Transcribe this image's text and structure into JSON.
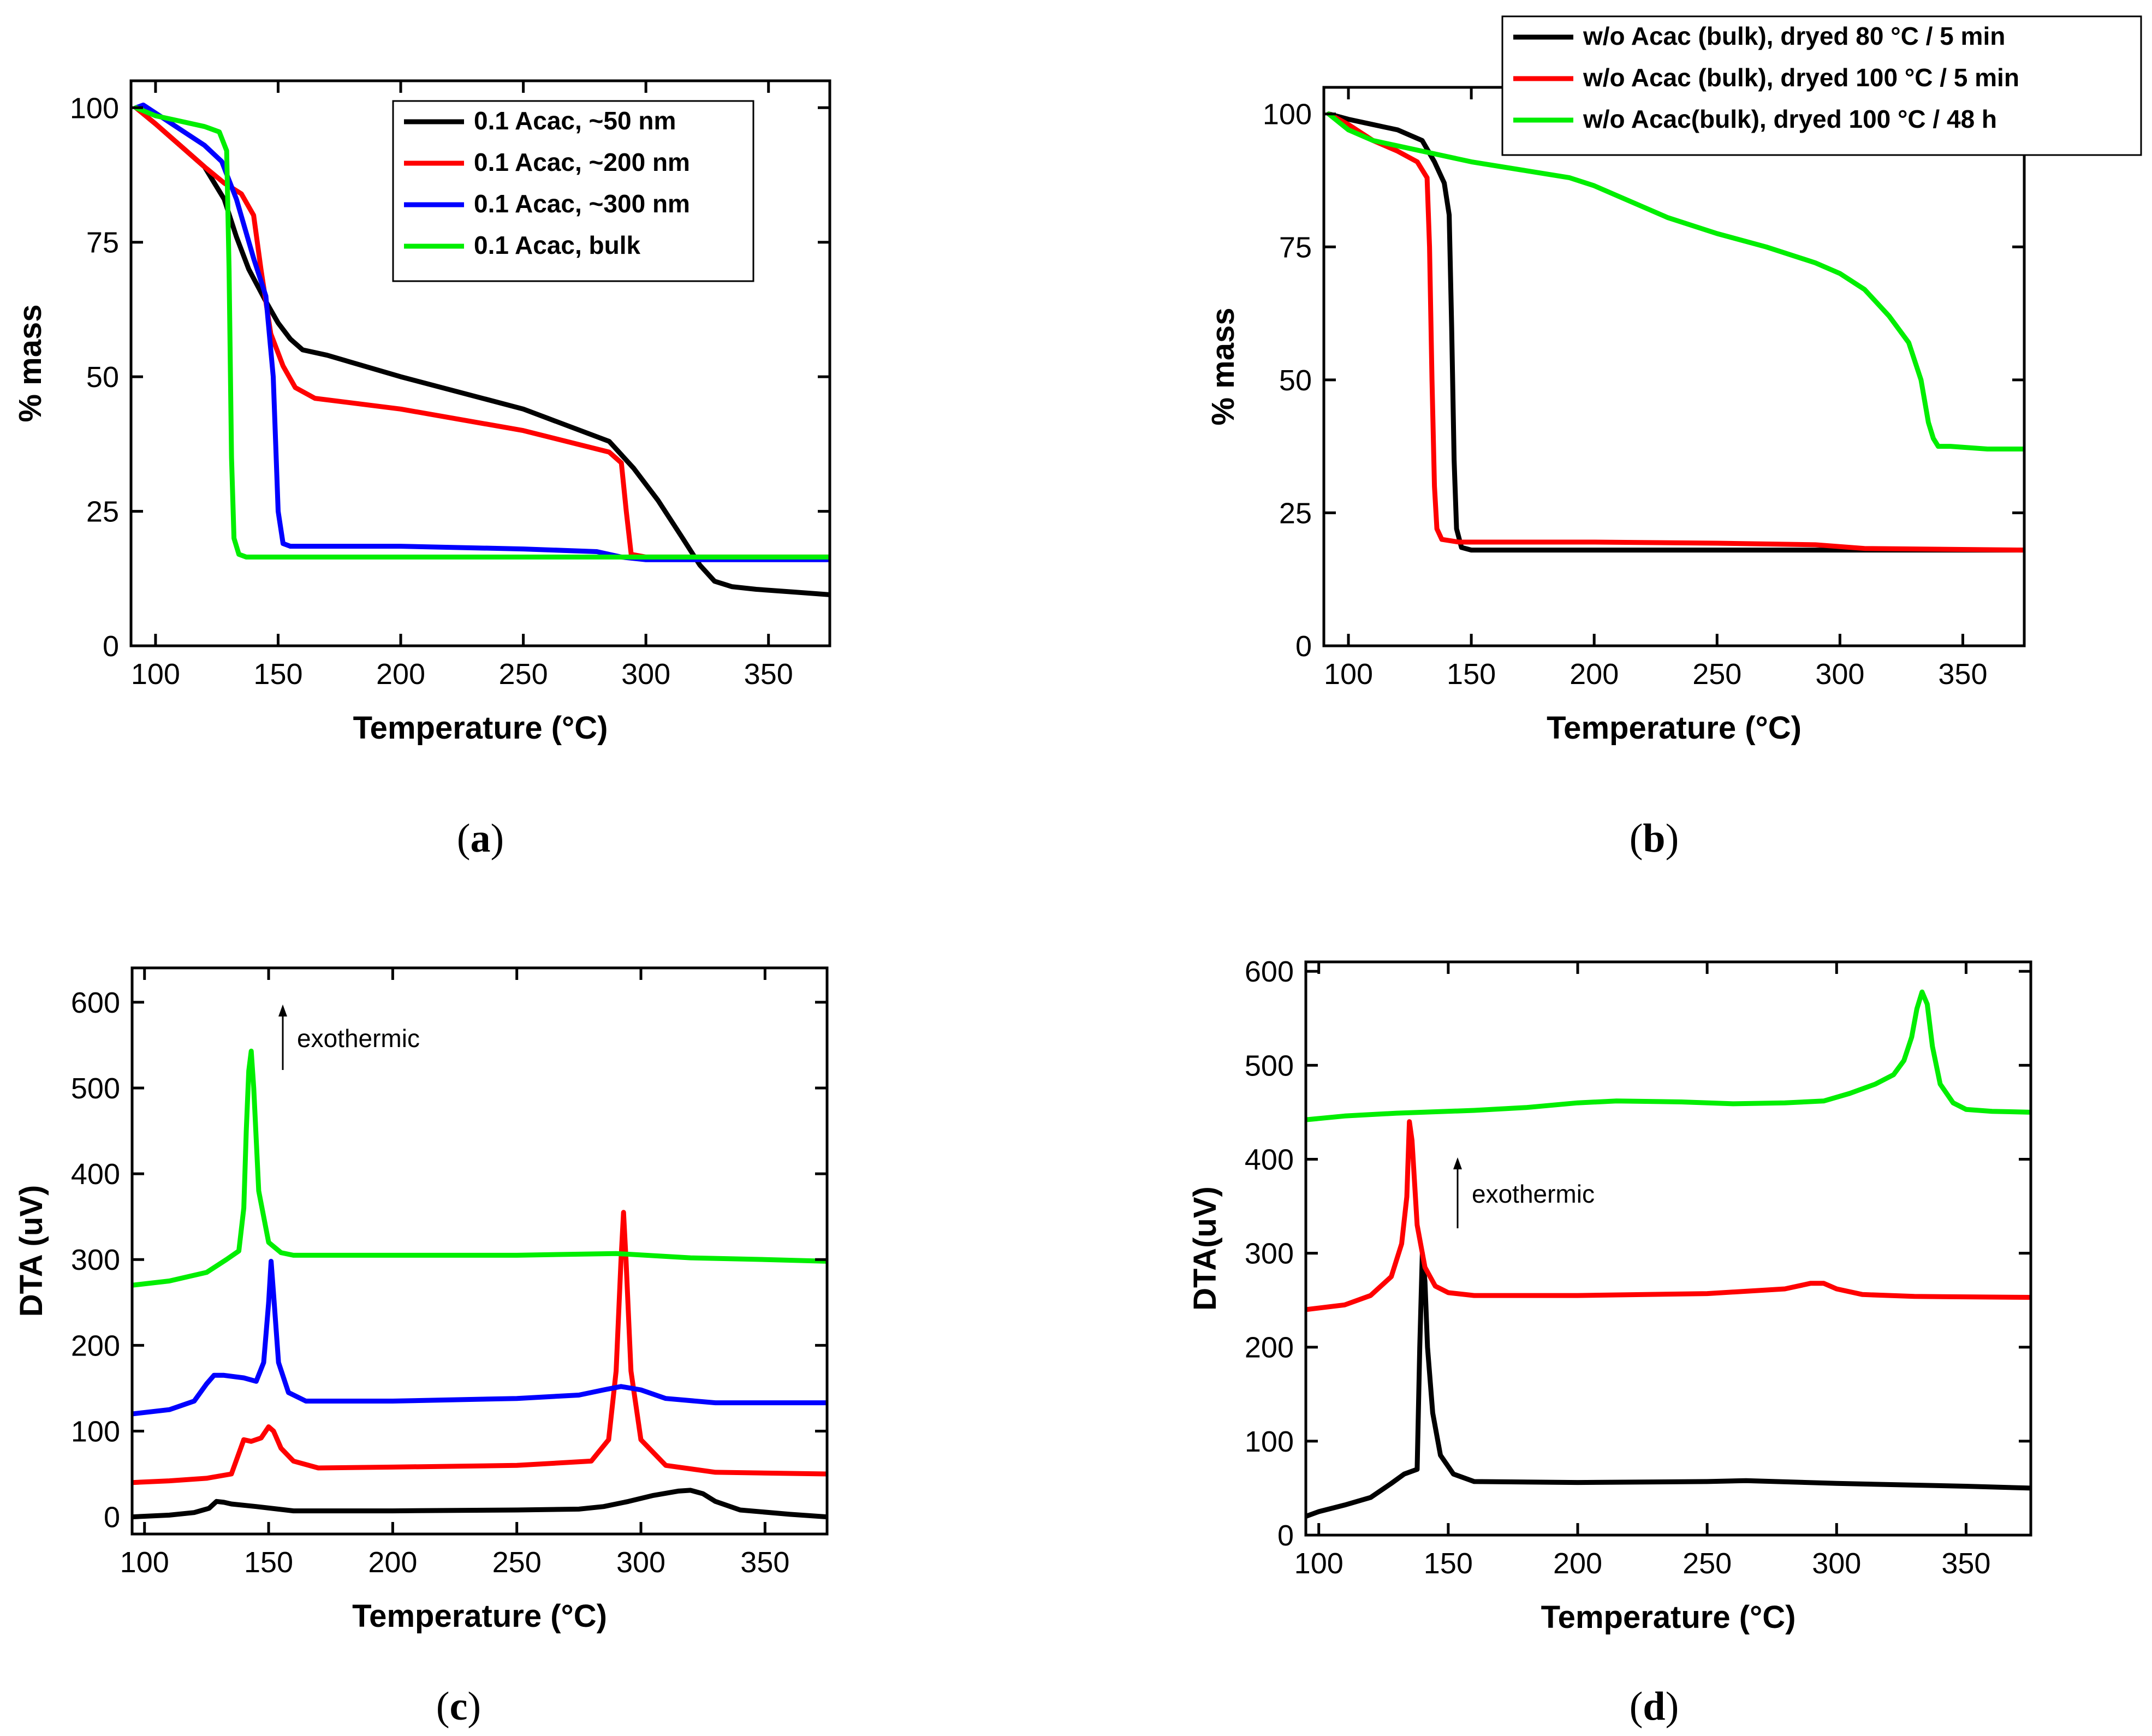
{
  "chart_data": [
    {
      "id": "a",
      "type": "line",
      "caption": "a",
      "title": "",
      "xlabel": "Temperature (°C)",
      "ylabel": "% mass",
      "xlim": [
        90,
        375
      ],
      "ylim": [
        0,
        105
      ],
      "xticks": [
        100,
        150,
        200,
        250,
        300,
        350
      ],
      "yticks": [
        0,
        25,
        50,
        75,
        100
      ],
      "legend_position": "top-right",
      "series": [
        {
          "name": "0.1 Acac, ~50 nm",
          "color": "#000000",
          "x": [
            92,
            100,
            110,
            120,
            128,
            133,
            138,
            145,
            150,
            155,
            160,
            170,
            200,
            250,
            285,
            295,
            305,
            315,
            322,
            328,
            335,
            345,
            360,
            375
          ],
          "y": [
            100,
            97,
            93,
            89,
            83,
            76,
            70,
            64,
            60,
            57,
            55,
            54,
            50,
            44,
            38,
            33,
            27,
            20,
            15,
            12,
            11,
            10.5,
            10,
            9.5
          ]
        },
        {
          "name": "0.1 Acac, ~200 nm",
          "color": "#ff0000",
          "x": [
            92,
            100,
            110,
            120,
            128,
            135,
            140,
            143,
            147,
            152,
            157,
            165,
            200,
            250,
            285,
            290,
            292,
            294,
            300,
            320,
            350,
            375
          ],
          "y": [
            100,
            97,
            93,
            89,
            86,
            84,
            80,
            70,
            58,
            52,
            48,
            46,
            44,
            40,
            36,
            34,
            25,
            17,
            16.5,
            16.5,
            16.5,
            16.5
          ]
        },
        {
          "name": "0.1 Acac, ~300 nm",
          "color": "#0000ff",
          "x": [
            92,
            95,
            100,
            110,
            120,
            127,
            133,
            140,
            145,
            148,
            150,
            152,
            155,
            200,
            250,
            280,
            290,
            300,
            350,
            375
          ],
          "y": [
            100,
            100.5,
            99,
            96,
            93,
            90,
            83,
            72,
            65,
            50,
            25,
            19,
            18.5,
            18.5,
            18,
            17.5,
            16.5,
            16,
            16,
            16
          ]
        },
        {
          "name": "0.1 Acac, bulk",
          "color": "#00ee00",
          "x": [
            92,
            100,
            110,
            120,
            126,
            129,
            130,
            131,
            132,
            134,
            137,
            150,
            200,
            250,
            300,
            350,
            375
          ],
          "y": [
            100,
            98.5,
            97.5,
            96.5,
            95.5,
            92,
            70,
            35,
            20,
            17,
            16.5,
            16.5,
            16.5,
            16.5,
            16.5,
            16.5,
            16.5
          ]
        }
      ]
    },
    {
      "id": "b",
      "type": "line",
      "caption": "b",
      "title": "",
      "xlabel": "Temperature (°C)",
      "ylabel": "% mass",
      "xlim": [
        90,
        375
      ],
      "ylim": [
        0,
        105
      ],
      "xticks": [
        100,
        150,
        200,
        250,
        300,
        350
      ],
      "yticks": [
        0,
        25,
        50,
        75,
        100
      ],
      "legend_position": "top-right",
      "series": [
        {
          "name": "w/o Acac (bulk), dryed 80 °C / 5 min",
          "color": "#000000",
          "x": [
            92,
            100,
            110,
            120,
            130,
            135,
            139,
            141,
            142,
            143,
            144,
            146,
            150,
            200,
            250,
            300,
            375
          ],
          "y": [
            100,
            99,
            98,
            97,
            95,
            91,
            87,
            81,
            60,
            35,
            22,
            18.5,
            18,
            18,
            18,
            18,
            18
          ]
        },
        {
          "name": "w/o Acac (bulk), dryed 100 °C /  5 min",
          "color": "#ff0000",
          "x": [
            92,
            100,
            110,
            120,
            128,
            132,
            133,
            134,
            135,
            136,
            138,
            145,
            200,
            250,
            290,
            310,
            375
          ],
          "y": [
            100,
            98,
            95,
            93,
            91,
            88,
            75,
            50,
            30,
            22,
            20,
            19.5,
            19.5,
            19.3,
            19,
            18.3,
            18
          ]
        },
        {
          "name": "w/o Acac(bulk), dryed 100 °C / 48 h",
          "color": "#00ee00",
          "x": [
            92,
            100,
            110,
            120,
            130,
            150,
            170,
            190,
            200,
            210,
            230,
            250,
            270,
            290,
            300,
            310,
            320,
            328,
            333,
            336,
            338,
            340,
            345,
            360,
            375
          ],
          "y": [
            100,
            97,
            95,
            94,
            93,
            91,
            89.5,
            88,
            86.5,
            84.5,
            80.5,
            77.5,
            75,
            72,
            70,
            67,
            62,
            57,
            50,
            42,
            39,
            37.5,
            37.5,
            37,
            37
          ]
        }
      ]
    },
    {
      "id": "c",
      "type": "line",
      "caption": "c",
      "title": "",
      "xlabel": "Temperature (°C)",
      "ylabel": "DTA (uV)",
      "xlim": [
        95,
        375
      ],
      "ylim": [
        -20,
        640
      ],
      "xticks": [
        100,
        150,
        200,
        250,
        300,
        350
      ],
      "yticks": [
        0,
        100,
        200,
        300,
        400,
        500,
        600
      ],
      "annotation": "exothermic",
      "series": [
        {
          "name": "0.1 Acac, ~50 nm",
          "color": "#000000",
          "x": [
            95,
            110,
            120,
            126,
            129,
            132,
            135,
            145,
            160,
            200,
            250,
            275,
            285,
            295,
            305,
            315,
            320,
            325,
            330,
            340,
            360,
            375
          ],
          "y": [
            0,
            2,
            5,
            10,
            18,
            17,
            15,
            12,
            7,
            7,
            8,
            9,
            12,
            18,
            25,
            30,
            31,
            27,
            18,
            8,
            3,
            0
          ]
        },
        {
          "name": "0.1 Acac, ~200 nm",
          "color": "#ff0000",
          "x": [
            95,
            110,
            125,
            135,
            140,
            143,
            147,
            150,
            152,
            155,
            160,
            170,
            200,
            250,
            280,
            287,
            290,
            292,
            293,
            294,
            296,
            300,
            310,
            330,
            375
          ],
          "y": [
            40,
            42,
            45,
            50,
            90,
            88,
            92,
            105,
            100,
            80,
            65,
            57,
            58,
            60,
            65,
            90,
            170,
            300,
            355,
            300,
            170,
            90,
            60,
            52,
            50
          ]
        },
        {
          "name": "0.1 Acac, ~300 nm",
          "color": "#0000ff",
          "x": [
            95,
            110,
            120,
            125,
            128,
            132,
            140,
            145,
            148,
            150,
            151,
            152,
            154,
            158,
            165,
            200,
            250,
            275,
            285,
            292,
            300,
            310,
            330,
            375
          ],
          "y": [
            120,
            125,
            135,
            155,
            165,
            165,
            162,
            158,
            180,
            250,
            298,
            260,
            180,
            145,
            135,
            135,
            138,
            142,
            148,
            152,
            148,
            138,
            133,
            133
          ]
        },
        {
          "name": "0.1 Acac, bulk",
          "color": "#00ee00",
          "x": [
            95,
            110,
            125,
            133,
            138,
            140,
            141,
            142,
            143,
            144,
            146,
            150,
            155,
            160,
            200,
            250,
            290,
            320,
            350,
            375
          ],
          "y": [
            270,
            275,
            285,
            300,
            310,
            360,
            450,
            520,
            543,
            500,
            380,
            320,
            308,
            305,
            305,
            305,
            307,
            302,
            300,
            298
          ]
        }
      ]
    },
    {
      "id": "d",
      "type": "line",
      "caption": "d",
      "title": "",
      "xlabel": "Temperature (°C)",
      "ylabel": "DTA(uV)",
      "xlim": [
        95,
        375
      ],
      "ylim": [
        0,
        610
      ],
      "xticks": [
        100,
        150,
        200,
        250,
        300,
        350
      ],
      "yticks": [
        0,
        100,
        200,
        300,
        400,
        500,
        600
      ],
      "annotation": "exothermic",
      "series": [
        {
          "name": "w/o Acac (bulk), dryed 80 °C / 5 min",
          "color": "#000000",
          "x": [
            95,
            100,
            110,
            120,
            128,
            133,
            138,
            139,
            140,
            141,
            142,
            144,
            147,
            152,
            160,
            200,
            250,
            265,
            300,
            350,
            375
          ],
          "y": [
            20,
            25,
            32,
            40,
            55,
            65,
            70,
            200,
            300,
            270,
            200,
            130,
            85,
            65,
            57,
            56,
            57,
            58,
            55,
            52,
            50
          ]
        },
        {
          "name": "w/o Acac (bulk), dryed 100 °C / 5 min",
          "color": "#ff0000",
          "x": [
            95,
            110,
            120,
            128,
            132,
            134,
            135,
            136,
            138,
            141,
            145,
            150,
            160,
            200,
            250,
            280,
            290,
            295,
            300,
            310,
            330,
            375
          ],
          "y": [
            240,
            245,
            255,
            275,
            310,
            360,
            440,
            420,
            330,
            285,
            265,
            258,
            255,
            255,
            257,
            262,
            268,
            268,
            262,
            256,
            254,
            253
          ]
        },
        {
          "name": "w/o Acac(bulk), dryed 100 °C / 48 h",
          "color": "#00ee00",
          "x": [
            95,
            110,
            130,
            160,
            180,
            200,
            215,
            240,
            260,
            280,
            295,
            305,
            315,
            322,
            326,
            329,
            331,
            333,
            335,
            337,
            340,
            345,
            350,
            360,
            375
          ],
          "y": [
            442,
            446,
            449,
            452,
            455,
            460,
            462,
            461,
            459,
            460,
            462,
            470,
            480,
            490,
            505,
            530,
            560,
            578,
            565,
            520,
            480,
            460,
            453,
            451,
            450
          ]
        }
      ]
    }
  ]
}
